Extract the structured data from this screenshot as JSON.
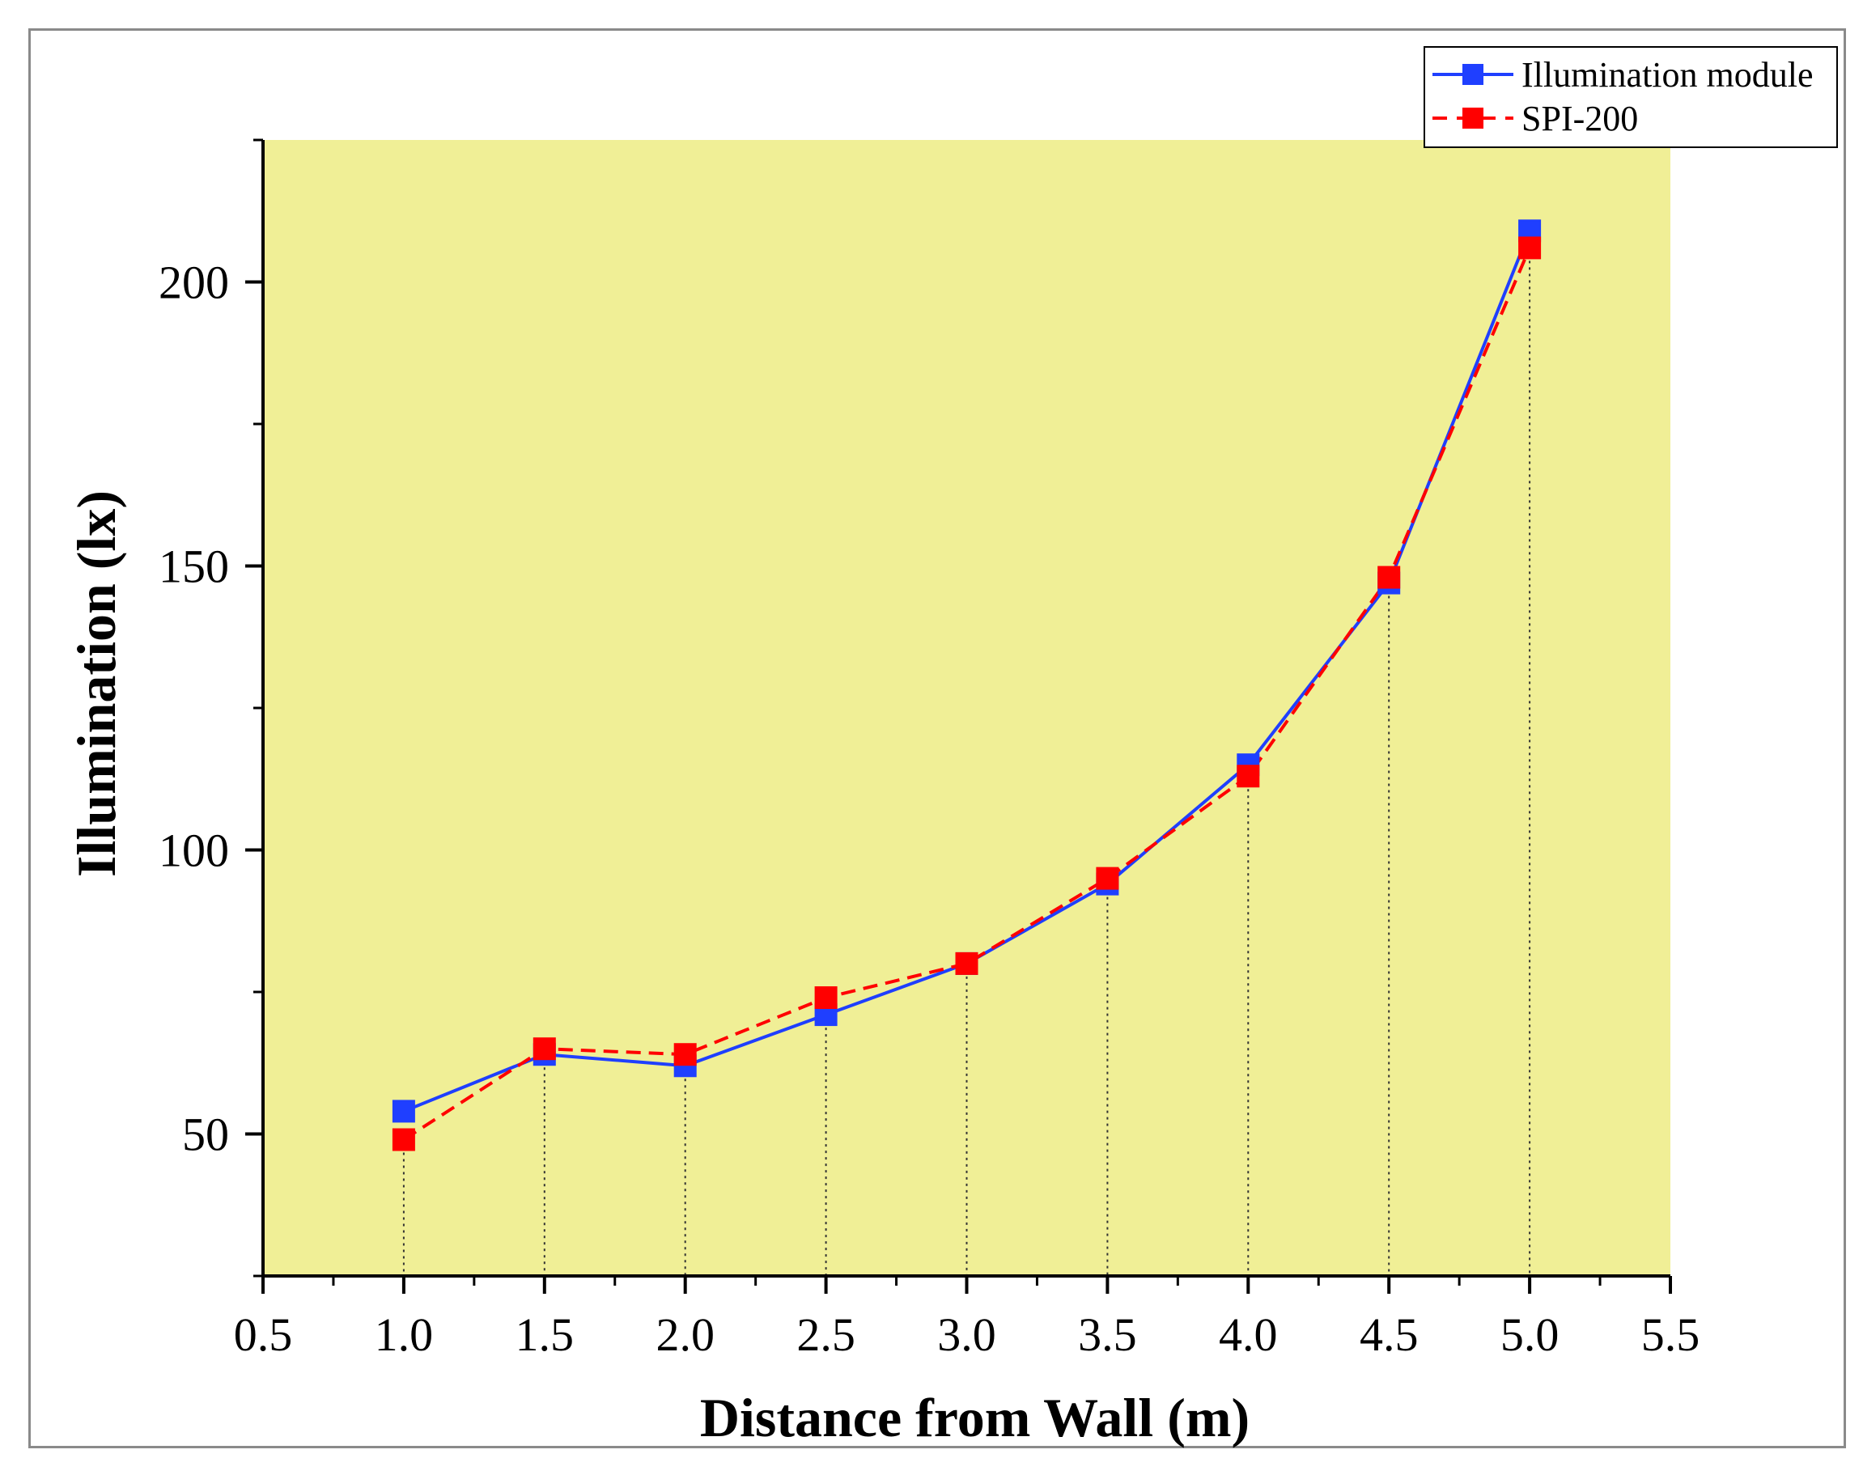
{
  "chart_data": {
    "type": "line",
    "title": "",
    "xlabel": "Distance from Wall (m)",
    "ylabel": "Illumination (lx)",
    "xlim": [
      0.5,
      5.5
    ],
    "ylim": [
      25,
      225
    ],
    "x_ticks": [
      {
        "value": 0.5,
        "label": "0.5"
      },
      {
        "value": 1.0,
        "label": "1.0"
      },
      {
        "value": 1.5,
        "label": "1.5"
      },
      {
        "value": 2.0,
        "label": "2.0"
      },
      {
        "value": 2.5,
        "label": "2.5"
      },
      {
        "value": 3.0,
        "label": "3.0"
      },
      {
        "value": 3.5,
        "label": "3.5"
      },
      {
        "value": 4.0,
        "label": "4.0"
      },
      {
        "value": 4.5,
        "label": "4.5"
      },
      {
        "value": 5.0,
        "label": "5.0"
      },
      {
        "value": 5.5,
        "label": "5.5"
      }
    ],
    "y_ticks": [
      {
        "value": 50,
        "label": "50"
      },
      {
        "value": 100,
        "label": "100"
      },
      {
        "value": 150,
        "label": "150"
      },
      {
        "value": 200,
        "label": "200"
      }
    ],
    "x": [
      1.0,
      1.5,
      2.0,
      2.5,
      3.0,
      3.5,
      4.0,
      4.5,
      5.0
    ],
    "series": [
      {
        "name": "Illumination module",
        "color": "#1f3fff",
        "line_style": "solid",
        "values": [
          54,
          64,
          62,
          71,
          80,
          94,
          115,
          147,
          209
        ]
      },
      {
        "name": "SPI-200",
        "color": "#ff0000",
        "line_style": "dashed",
        "values": [
          49,
          65,
          64,
          74,
          80,
          95,
          113,
          148,
          206
        ]
      }
    ],
    "drop_lines": true,
    "plot_background": "#f0ef96",
    "legend_position": "top-right",
    "grid": false
  }
}
